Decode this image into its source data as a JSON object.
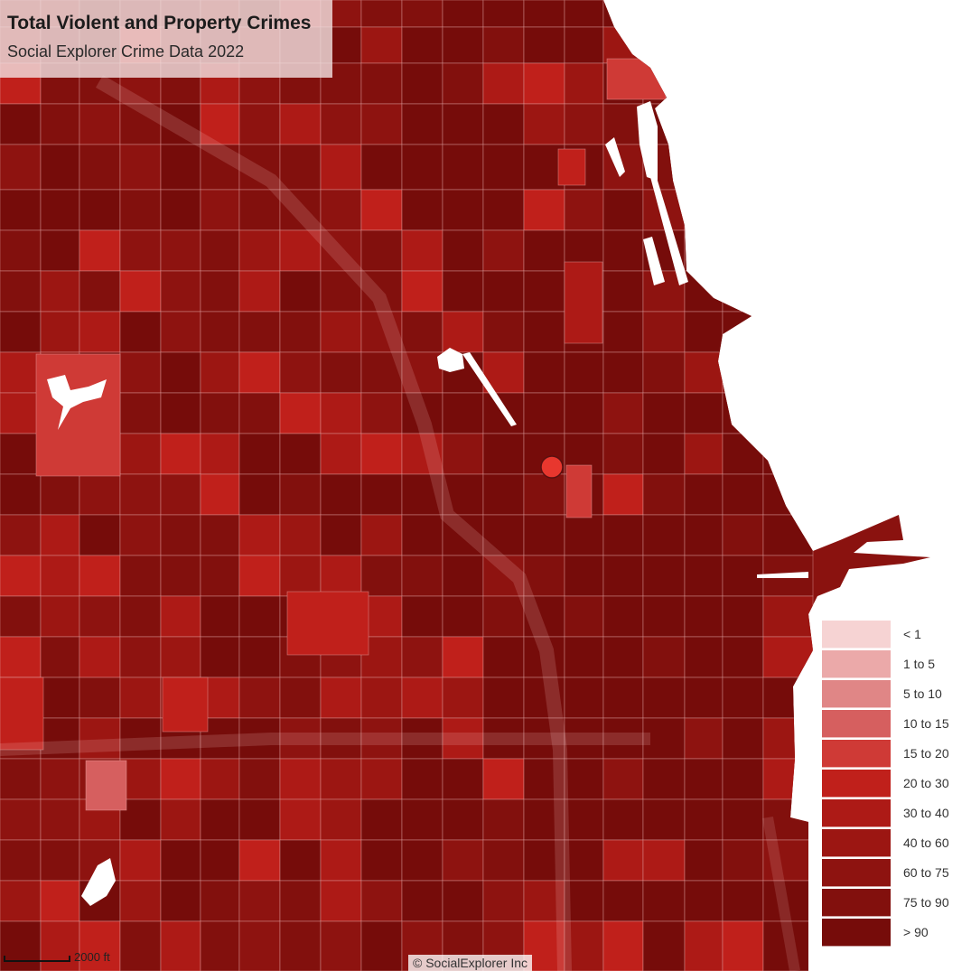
{
  "title": "Total Violent and Property Crimes",
  "subtitle": "Social Explorer Crime Data 2022",
  "legend": {
    "items": [
      {
        "label": "< 1",
        "color": "#f6d3d3"
      },
      {
        "label": "1 to 5",
        "color": "#eba9a9"
      },
      {
        "label": "5 to 10",
        "color": "#e08686"
      },
      {
        "label": "10 to 15",
        "color": "#d65f5f"
      },
      {
        "label": "15 to 20",
        "color": "#cf3a36"
      },
      {
        "label": "20 to 30",
        "color": "#c0201b"
      },
      {
        "label": "30 to 40",
        "color": "#ad1a16"
      },
      {
        "label": "40 to 60",
        "color": "#9c1612"
      },
      {
        "label": "60 to 75",
        "color": "#8e1310"
      },
      {
        "label": "75 to 90",
        "color": "#82100d"
      },
      {
        "label": "> 90",
        "color": "#760c0a"
      }
    ]
  },
  "scale": {
    "label": "2000 ft"
  },
  "copyright": "© SocialExplorer Inc",
  "colors": {
    "lake": "#ffffff",
    "marker": "#e8372e",
    "tract_border": "#e8b0b0"
  },
  "icons": {
    "location_marker": "selected-location-marker-icon"
  }
}
